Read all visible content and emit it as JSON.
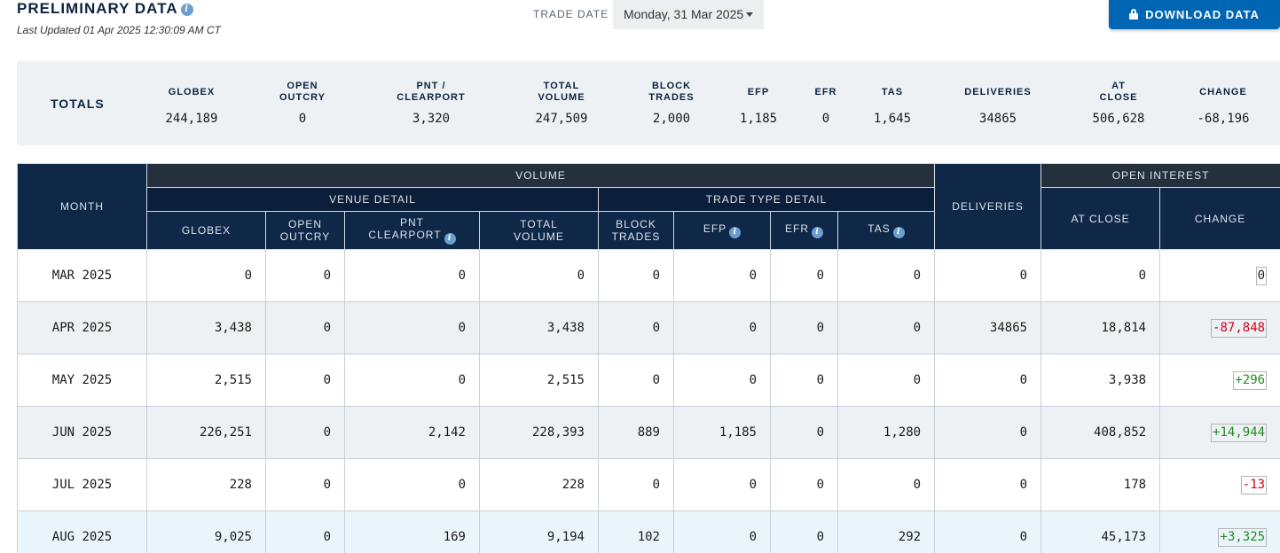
{
  "header": {
    "title": "PRELIMINARY DATA",
    "last_updated": "Last Updated 01 Apr 2025 12:30:09 AM CT",
    "trade_date_label": "TRADE DATE",
    "trade_date_value": "Monday, 31 Mar 2025",
    "download_label": "DOWNLOAD DATA"
  },
  "totals": {
    "label": "TOTALS",
    "columns": [
      {
        "header": "GLOBEX",
        "value": "244,189"
      },
      {
        "header": "OPEN OUTCRY",
        "value": "0"
      },
      {
        "header": "PNT / CLEARPORT",
        "value": "3,320"
      },
      {
        "header": "TOTAL VOLUME",
        "value": "247,509"
      },
      {
        "header": "BLOCK TRADES",
        "value": "2,000"
      },
      {
        "header": "EFP",
        "value": "1,185"
      },
      {
        "header": "EFR",
        "value": "0"
      },
      {
        "header": "TAS",
        "value": "1,645"
      },
      {
        "header": "DELIVERIES",
        "value": "34865"
      },
      {
        "header": "AT CLOSE",
        "value": "506,628"
      },
      {
        "header": "CHANGE",
        "value": "-68,196"
      }
    ]
  },
  "table": {
    "groups": {
      "month": "MONTH",
      "volume": "VOLUME",
      "venue_detail": "VENUE DETAIL",
      "trade_type_detail": "TRADE TYPE DETAIL",
      "deliveries": "DELIVERIES",
      "open_interest": "OPEN INTEREST"
    },
    "columns": {
      "globex": "GLOBEX",
      "open_outcry": "OPEN OUTCRY",
      "pnt_clearport_line1": "PNT",
      "pnt_clearport_line2": "CLEARPORT",
      "total_volume": "TOTAL VOLUME",
      "block_trades": "BLOCK TRADES",
      "efp": "EFP",
      "efr": "EFR",
      "tas": "TAS",
      "at_close": "AT CLOSE",
      "change": "CHANGE"
    },
    "rows": [
      {
        "month": "MAR 2025",
        "globex": "0",
        "open_outcry": "0",
        "pnt": "0",
        "total_volume": "0",
        "block_trades": "0",
        "efp": "0",
        "efr": "0",
        "tas": "0",
        "deliveries": "0",
        "at_close": "0",
        "change": "0"
      },
      {
        "month": "APR 2025",
        "globex": "3,438",
        "open_outcry": "0",
        "pnt": "0",
        "total_volume": "3,438",
        "block_trades": "0",
        "efp": "0",
        "efr": "0",
        "tas": "0",
        "deliveries": "34865",
        "at_close": "18,814",
        "change": "-87,848"
      },
      {
        "month": "MAY 2025",
        "globex": "2,515",
        "open_outcry": "0",
        "pnt": "0",
        "total_volume": "2,515",
        "block_trades": "0",
        "efp": "0",
        "efr": "0",
        "tas": "0",
        "deliveries": "0",
        "at_close": "3,938",
        "change": "+296"
      },
      {
        "month": "JUN 2025",
        "globex": "226,251",
        "open_outcry": "0",
        "pnt": "2,142",
        "total_volume": "228,393",
        "block_trades": "889",
        "efp": "1,185",
        "efr": "0",
        "tas": "1,280",
        "deliveries": "0",
        "at_close": "408,852",
        "change": "+14,944"
      },
      {
        "month": "JUL 2025",
        "globex": "228",
        "open_outcry": "0",
        "pnt": "0",
        "total_volume": "228",
        "block_trades": "0",
        "efp": "0",
        "efr": "0",
        "tas": "0",
        "deliveries": "0",
        "at_close": "178",
        "change": "-13"
      },
      {
        "month": "AUG 2025",
        "globex": "9,025",
        "open_outcry": "0",
        "pnt": "169",
        "total_volume": "9,194",
        "block_trades": "102",
        "efp": "0",
        "efr": "0",
        "tas": "292",
        "deliveries": "0",
        "at_close": "45,173",
        "change": "+3,325"
      }
    ]
  },
  "colors": {
    "header_dark": "#0f2848",
    "header_top": "#24313d",
    "accent_blue": "#0066b3",
    "positive": "#228b22",
    "negative": "#d0021b"
  }
}
